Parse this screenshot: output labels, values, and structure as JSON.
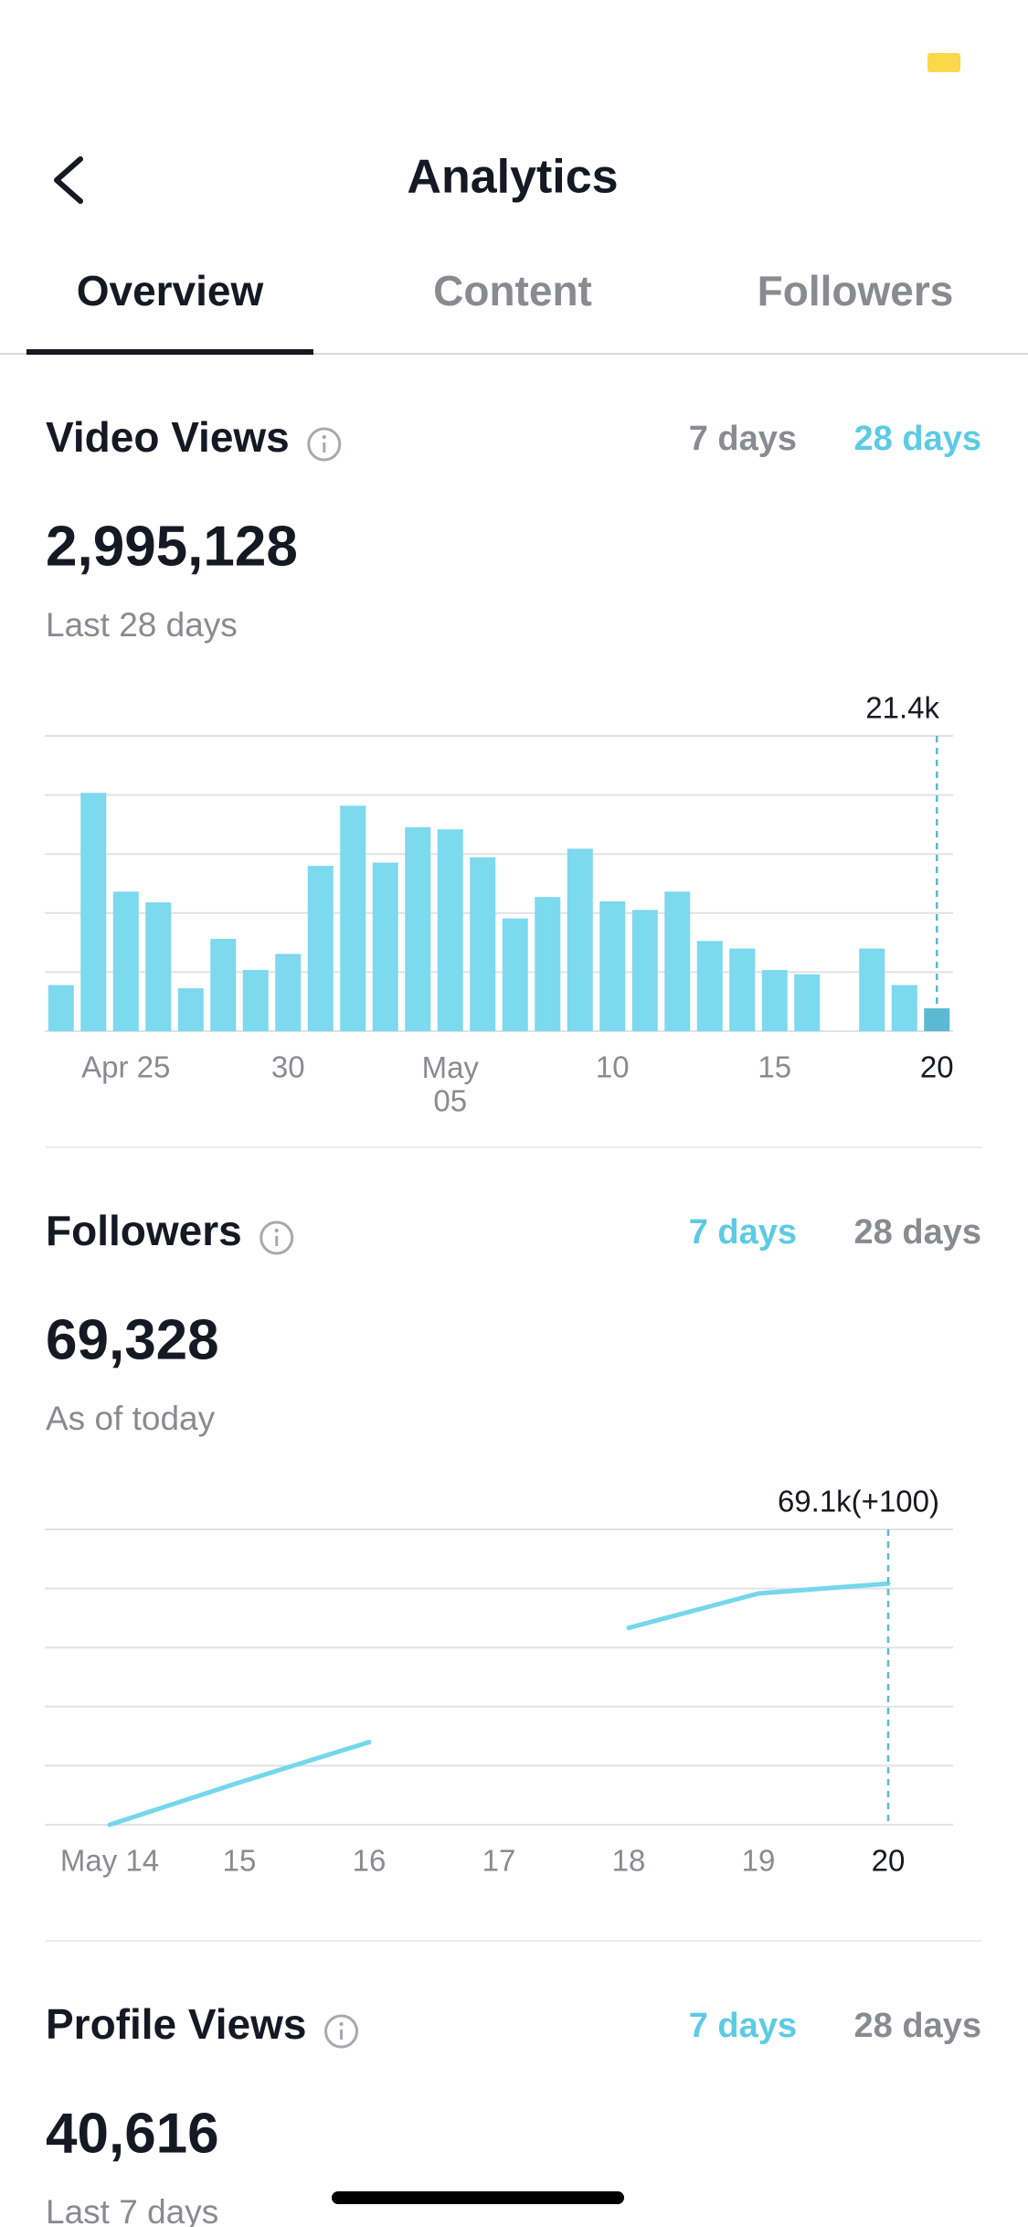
{
  "header": {
    "title": "Analytics"
  },
  "tabs": [
    "Overview",
    "Content",
    "Followers"
  ],
  "active_tab": 0,
  "sections": [
    {
      "title": "Video Views",
      "ranges": [
        "7 days",
        "28 days"
      ],
      "active_range": 1,
      "total": "2,995,128",
      "caption": "Last 28 days",
      "chart_data": {
        "type": "bar",
        "color": "#7dd9ee",
        "highlight_color": "#5bb9d3",
        "categories": [
          null,
          null,
          "Apr 25",
          null,
          null,
          null,
          null,
          "30",
          null,
          null,
          null,
          null,
          "May\n05",
          null,
          null,
          null,
          null,
          "10",
          null,
          null,
          null,
          null,
          "15",
          null,
          null,
          null,
          null,
          "20"
        ],
        "values": [
          43000,
          222000,
          130000,
          120000,
          40000,
          86000,
          57000,
          72000,
          154000,
          210000,
          157000,
          190000,
          188000,
          162000,
          105000,
          125000,
          170000,
          121000,
          113000,
          130000,
          84000,
          77000,
          57000,
          53000,
          null,
          77000,
          43000,
          21400
        ],
        "value_labels": [
          null,
          null,
          null,
          null,
          null,
          null,
          null,
          null,
          null,
          null,
          null,
          null,
          null,
          null,
          null,
          null,
          null,
          null,
          null,
          null,
          null,
          null,
          null,
          null,
          null,
          null,
          null,
          "21.4k"
        ],
        "ylim": [
          0,
          275000
        ],
        "yticks": [
          0,
          55000,
          110000,
          165000,
          220000,
          275000
        ],
        "grid": true
      }
    },
    {
      "title": "Followers",
      "ranges": [
        "7 days",
        "28 days"
      ],
      "active_range": 0,
      "total": "69,328",
      "caption": "As of today",
      "chart_data": {
        "type": "line",
        "color": "#74d7ec",
        "highlight_color": "#5bb9d3",
        "categories": [
          "May 14",
          "15",
          "16",
          "17",
          "18",
          "19",
          "20"
        ],
        "values": [
          66650,
          67080,
          67490,
          null,
          68650,
          69000,
          69100
        ],
        "value_labels": [
          null,
          null,
          null,
          null,
          null,
          null,
          "69.1k(+100)"
        ],
        "ylim": [
          66650,
          69650
        ],
        "yticks": [
          66650,
          67250,
          67850,
          68450,
          69050,
          69650
        ],
        "grid": true
      }
    },
    {
      "title": "Profile Views",
      "ranges": [
        "7 days",
        "28 days"
      ],
      "active_range": 0,
      "total": "40,616",
      "caption": "Last 7 days"
    }
  ]
}
